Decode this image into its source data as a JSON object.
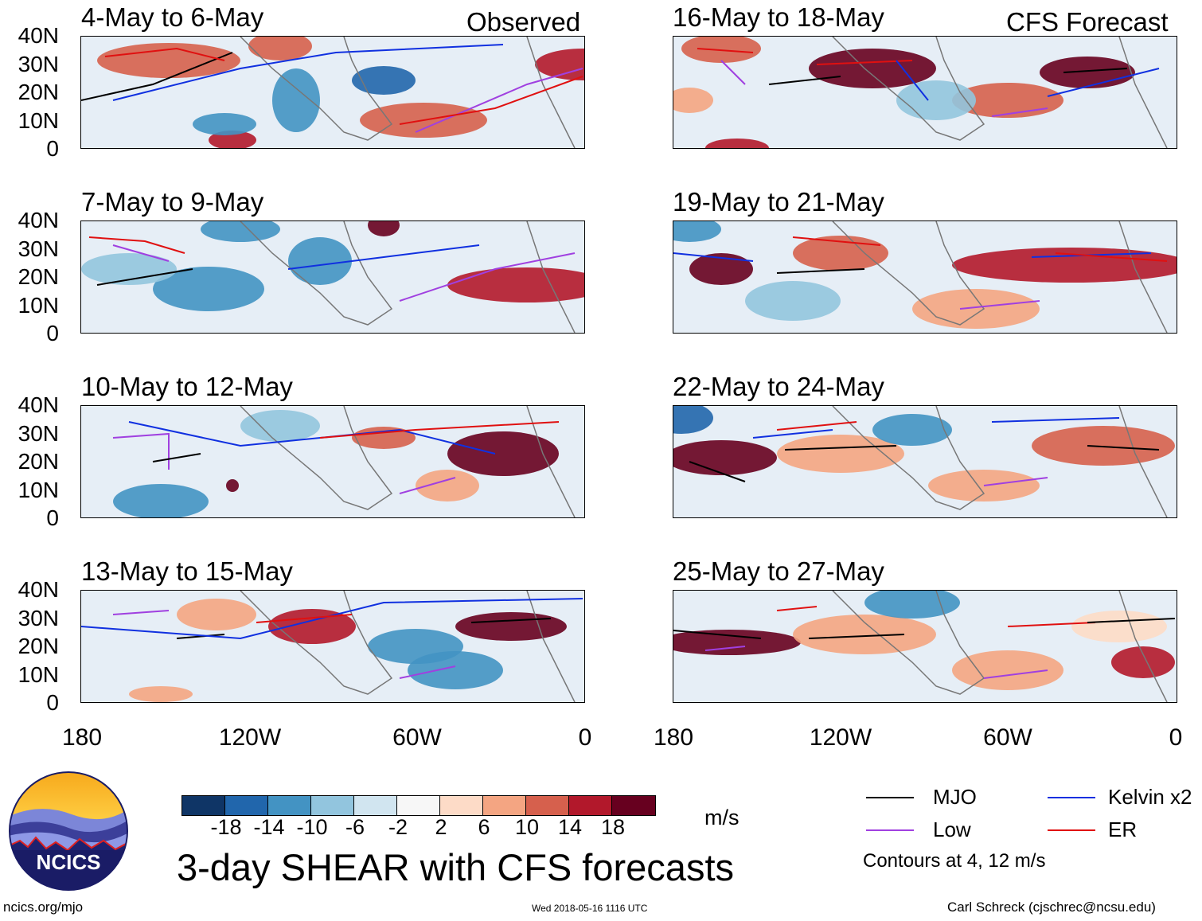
{
  "title": "3-day SHEAR with CFS forecasts",
  "units": "m/s",
  "observed_label": "Observed",
  "forecast_label": "CFS Forecast",
  "y_ticks": [
    "40N",
    "30N",
    "20N",
    "10N",
    "0"
  ],
  "x_ticks": [
    "180",
    "120W",
    "60W",
    "0"
  ],
  "panels": [
    {
      "period": "4-May to 6-May"
    },
    {
      "period": "7-May to 9-May"
    },
    {
      "period": "10-May to 12-May"
    },
    {
      "period": "13-May to 15-May"
    },
    {
      "period": "16-May to 18-May"
    },
    {
      "period": "19-May to 21-May"
    },
    {
      "period": "22-May to 24-May"
    },
    {
      "period": "25-May to 27-May"
    }
  ],
  "colorbar": {
    "ticks": [
      "-18",
      "-14",
      "-10",
      "-6",
      "-2",
      "2",
      "6",
      "10",
      "14",
      "18"
    ],
    "colors": [
      "#0f3566",
      "#2166ac",
      "#4393c3",
      "#92c5de",
      "#d1e5f0",
      "#f7f7f7",
      "#fddbc7",
      "#f4a582",
      "#d6604d",
      "#b2182b",
      "#67001f"
    ]
  },
  "legend": [
    {
      "label": "MJO",
      "color": "#000000"
    },
    {
      "label": "Kelvin x2",
      "color": "#1030e0"
    },
    {
      "label": "Low",
      "color": "#a040e0"
    },
    {
      "label": "ER",
      "color": "#e01010"
    }
  ],
  "contours_note": "Contours at 4, 12 m/s",
  "logo_text": "NCICS",
  "footer": {
    "left": "ncics.org/mjo",
    "middle": "Wed 2018-05-16 1116 UTC",
    "right": "Carl Schreck (cjschrec@ncsu.edu)"
  }
}
